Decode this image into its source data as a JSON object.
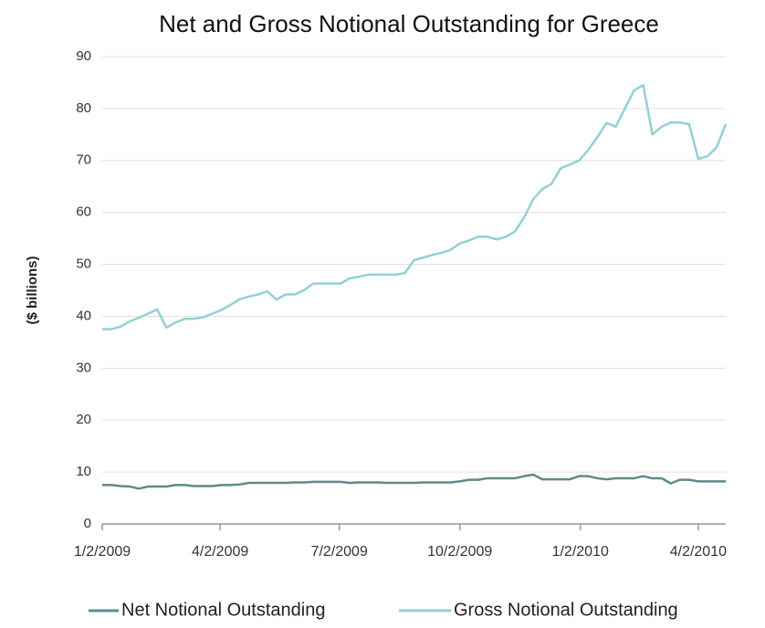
{
  "chart_data": {
    "type": "line",
    "title": "Net and Gross Notional Outstanding for Greece",
    "y_label": "($ billions)",
    "x": [
      "1/2/2009",
      "1/9/2009",
      "1/16/2009",
      "1/23/2009",
      "1/30/2009",
      "2/6/2009",
      "2/13/2009",
      "2/20/2009",
      "2/27/2009",
      "3/6/2009",
      "3/13/2009",
      "3/20/2009",
      "3/27/2009",
      "4/3/2009",
      "4/10/2009",
      "4/17/2009",
      "4/24/2009",
      "5/1/2009",
      "5/8/2009",
      "5/15/2009",
      "5/22/2009",
      "5/29/2009",
      "6/5/2009",
      "6/12/2009",
      "6/19/2009",
      "6/26/2009",
      "7/3/2009",
      "7/10/2009",
      "7/17/2009",
      "7/24/2009",
      "7/31/2009",
      "8/7/2009",
      "8/14/2009",
      "8/21/2009",
      "8/28/2009",
      "9/4/2009",
      "9/11/2009",
      "9/18/2009",
      "9/25/2009",
      "10/2/2009",
      "10/9/2009",
      "10/16/2009",
      "10/23/2009",
      "10/30/2009",
      "11/6/2009",
      "11/13/2009",
      "11/20/2009",
      "11/27/2009",
      "12/4/2009",
      "12/11/2009",
      "12/18/2009",
      "12/25/2009",
      "1/1/2010",
      "1/8/2010",
      "1/15/2010",
      "1/22/2010",
      "1/29/2010",
      "2/5/2010",
      "2/12/2010",
      "2/19/2010",
      "2/26/2010",
      "3/5/2010",
      "3/12/2010",
      "3/19/2010",
      "3/26/2010",
      "4/2/2010",
      "4/9/2010",
      "4/16/2010",
      "4/23/2010"
    ],
    "series": [
      {
        "name": "Net Notional Outstanding",
        "color": "#5f8a8b",
        "values": [
          7.5,
          7.5,
          7.3,
          7.2,
          6.8,
          7.2,
          7.2,
          7.2,
          7.5,
          7.5,
          7.3,
          7.3,
          7.3,
          7.5,
          7.5,
          7.6,
          7.9,
          7.9,
          7.9,
          7.9,
          7.9,
          8,
          8,
          8.1,
          8.1,
          8.1,
          8.1,
          7.9,
          8,
          8,
          8,
          7.9,
          7.9,
          7.9,
          7.9,
          8,
          8,
          8,
          8,
          8.2,
          8.5,
          8.5,
          8.8,
          8.8,
          8.8,
          8.8,
          9.2,
          9.5,
          8.6,
          8.6,
          8.6,
          8.6,
          9.2,
          9.2,
          8.8,
          8.6,
          8.8,
          8.8,
          8.8,
          9.2,
          8.8,
          8.8,
          7.8,
          8.5,
          8.5,
          8.2,
          8.2,
          8.2,
          8.2
        ]
      },
      {
        "name": "Gross Notional Outstanding",
        "color": "#92d0d6",
        "values": [
          37.5,
          37.5,
          38,
          39,
          39.7,
          40.5,
          41.3,
          37.8,
          38.8,
          39.5,
          39.5,
          39.8,
          40.5,
          41.2,
          42.2,
          43.3,
          43.8,
          44.2,
          44.8,
          43.2,
          44.2,
          44.2,
          45,
          46.3,
          46.3,
          46.3,
          46.3,
          47.3,
          47.6,
          48,
          48,
          48,
          48,
          48.3,
          50.8,
          51.3,
          51.8,
          52.2,
          52.8,
          54,
          54.6,
          55.3,
          55.3,
          54.8,
          55.3,
          56.3,
          59,
          62.5,
          64.5,
          65.5,
          68.5,
          69.2,
          70,
          72,
          74.5,
          77.2,
          76.5,
          80,
          83.5,
          84.5,
          75,
          76.5,
          77.3,
          77.3,
          77,
          70.3,
          70.8,
          72.5,
          77
        ]
      }
    ],
    "xlim": [
      "1/2/2009",
      "4/23/2010"
    ],
    "xticks": [
      "1/2/2009",
      "4/2/2009",
      "7/2/2009",
      "10/2/2009",
      "1/2/2010",
      "4/2/2010"
    ],
    "ylim": [
      0,
      90
    ],
    "yticks": [
      0,
      10,
      20,
      30,
      40,
      50,
      60,
      70,
      80,
      90
    ],
    "grid": true,
    "legend": "bottom"
  }
}
